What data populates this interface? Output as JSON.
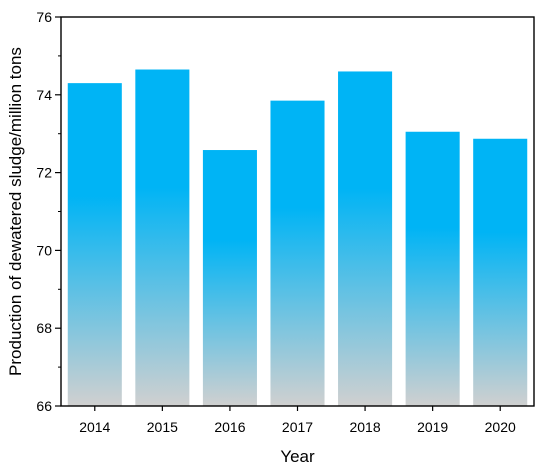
{
  "chart_data": {
    "type": "bar",
    "categories": [
      "2014",
      "2015",
      "2016",
      "2017",
      "2018",
      "2019",
      "2020"
    ],
    "values": [
      74.3,
      74.65,
      72.58,
      73.85,
      74.6,
      73.05,
      72.87
    ],
    "title": "",
    "xlabel": "Year",
    "ylabel": "Production of dewatered sludge/million tons",
    "ylim": [
      66,
      76
    ],
    "yticks": [
      66,
      68,
      70,
      72,
      74,
      76
    ],
    "ytick_labels": [
      "66",
      "68",
      "70",
      "72",
      "74",
      "76"
    ],
    "grid": false,
    "legend": "none",
    "bar_gradient": {
      "top": "#00b4f5",
      "bottom": "#d0d0d0"
    }
  }
}
